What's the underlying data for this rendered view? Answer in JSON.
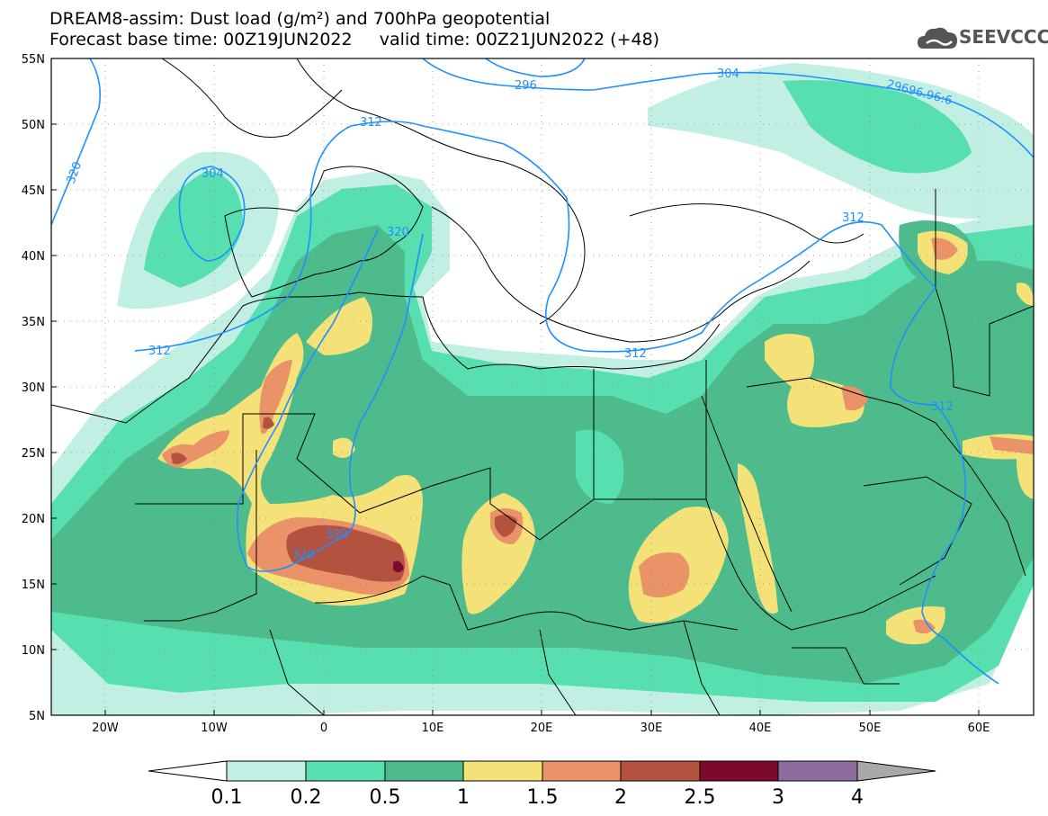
{
  "title": {
    "line1": "DREAM8-assim: Dust load (g/m²) and 700hPa geopotential",
    "line2": "Forecast base time: 00Z19JUN2022     valid time: 00Z21JUN2022 (+48)"
  },
  "logo": {
    "text": "SEEVCCC",
    "icon": "cloud-icon"
  },
  "axes": {
    "lat_labels": [
      "55N",
      "50N",
      "45N",
      "40N",
      "35N",
      "30N",
      "25N",
      "20N",
      "15N",
      "10N",
      "5N"
    ],
    "lon_labels": [
      "20W",
      "10W",
      "0",
      "10E",
      "20E",
      "30E",
      "40E",
      "50E",
      "60E"
    ]
  },
  "contours": [
    {
      "label": "296"
    },
    {
      "label": "304"
    },
    {
      "label": "304"
    },
    {
      "label": "320"
    },
    {
      "label": "312"
    },
    {
      "label": "320"
    },
    {
      "label": "312"
    },
    {
      "label": "312"
    },
    {
      "label": "312"
    },
    {
      "label": "312"
    },
    {
      "label": "320"
    },
    {
      "label": "320"
    },
    {
      "label": "29696.96:6"
    }
  ],
  "colorbar": {
    "tick_labels": [
      "0.1",
      "0.2",
      "0.5",
      "1",
      "1.5",
      "2",
      "2.5",
      "3",
      "4"
    ],
    "colors": [
      "#c2efe4",
      "#58dfb0",
      "#4dbb8c",
      "#f4e279",
      "#ea9268",
      "#b3533f",
      "#7c0a2b",
      "#8e6c9f",
      "#a9a9a9"
    ],
    "under_color": "#ffffff"
  }
}
